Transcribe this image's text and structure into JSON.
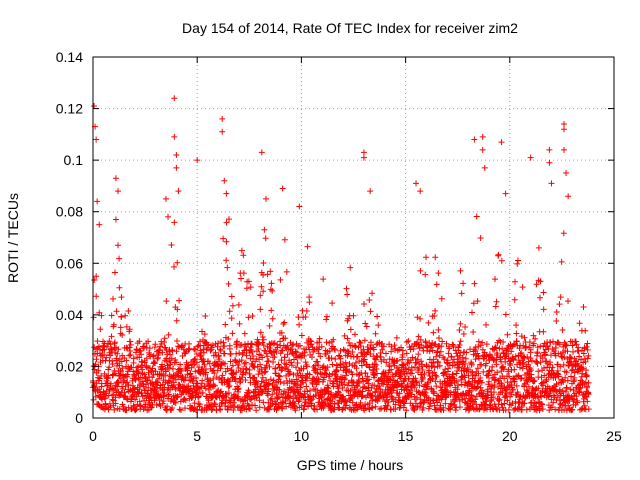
{
  "chart_data": {
    "type": "scatter",
    "title": "Day 154 of 2014, Rate Of TEC Index for receiver zim2",
    "xlabel": "GPS time / hours",
    "ylabel": "ROTI / TECUs",
    "xlim": [
      0,
      25
    ],
    "ylim": [
      0,
      0.14
    ],
    "xticks": [
      0,
      5,
      10,
      15,
      20,
      25
    ],
    "xtick_labels": [
      "0",
      "5",
      "10",
      "15",
      "20",
      "25"
    ],
    "yticks": [
      0,
      0.02,
      0.04,
      0.06,
      0.08,
      0.1,
      0.12,
      0.14
    ],
    "ytick_labels": [
      "0",
      "0.02",
      "0.04",
      "0.06",
      "0.08",
      "0.1",
      "0.12",
      "0.14"
    ],
    "grid": true,
    "marker": "plus",
    "color": "#ff0000",
    "series": [
      {
        "name": "ROTI",
        "x_range": [
          0,
          23.8
        ],
        "background_band": [
          0.003,
          0.03
        ],
        "notable_points": [
          {
            "x": 0.05,
            "y": 0.121
          },
          {
            "x": 0.1,
            "y": 0.113
          },
          {
            "x": 0.15,
            "y": 0.108
          },
          {
            "x": 0.2,
            "y": 0.084
          },
          {
            "x": 0.3,
            "y": 0.075
          },
          {
            "x": 1.1,
            "y": 0.093
          },
          {
            "x": 1.2,
            "y": 0.088
          },
          {
            "x": 1.1,
            "y": 0.077
          },
          {
            "x": 1.2,
            "y": 0.067
          },
          {
            "x": 3.5,
            "y": 0.085
          },
          {
            "x": 3.6,
            "y": 0.078
          },
          {
            "x": 3.9,
            "y": 0.124
          },
          {
            "x": 3.9,
            "y": 0.109
          },
          {
            "x": 4.0,
            "y": 0.102
          },
          {
            "x": 4.0,
            "y": 0.097
          },
          {
            "x": 4.1,
            "y": 0.088
          },
          {
            "x": 5.0,
            "y": 0.1
          },
          {
            "x": 6.2,
            "y": 0.116
          },
          {
            "x": 6.2,
            "y": 0.111
          },
          {
            "x": 6.3,
            "y": 0.092
          },
          {
            "x": 6.4,
            "y": 0.087
          },
          {
            "x": 8.1,
            "y": 0.103
          },
          {
            "x": 8.3,
            "y": 0.085
          },
          {
            "x": 9.1,
            "y": 0.089
          },
          {
            "x": 9.9,
            "y": 0.082
          },
          {
            "x": 13.0,
            "y": 0.103
          },
          {
            "x": 13.0,
            "y": 0.101
          },
          {
            "x": 13.3,
            "y": 0.088
          },
          {
            "x": 15.5,
            "y": 0.091
          },
          {
            "x": 15.7,
            "y": 0.088
          },
          {
            "x": 18.3,
            "y": 0.108
          },
          {
            "x": 18.7,
            "y": 0.109
          },
          {
            "x": 18.7,
            "y": 0.104
          },
          {
            "x": 18.8,
            "y": 0.097
          },
          {
            "x": 19.6,
            "y": 0.107
          },
          {
            "x": 19.8,
            "y": 0.087
          },
          {
            "x": 21.0,
            "y": 0.101
          },
          {
            "x": 21.9,
            "y": 0.104
          },
          {
            "x": 21.9,
            "y": 0.099
          },
          {
            "x": 22.0,
            "y": 0.091
          },
          {
            "x": 22.6,
            "y": 0.114
          },
          {
            "x": 22.6,
            "y": 0.112
          },
          {
            "x": 22.6,
            "y": 0.104
          },
          {
            "x": 22.7,
            "y": 0.095
          },
          {
            "x": 22.8,
            "y": 0.086
          }
        ],
        "activity_peaks": [
          {
            "x": 0.2,
            "y": 0.06
          },
          {
            "x": 1.1,
            "y": 0.07
          },
          {
            "x": 1.6,
            "y": 0.045
          },
          {
            "x": 3.8,
            "y": 0.085
          },
          {
            "x": 5.4,
            "y": 0.045
          },
          {
            "x": 6.4,
            "y": 0.085
          },
          {
            "x": 7.3,
            "y": 0.075
          },
          {
            "x": 8.3,
            "y": 0.08
          },
          {
            "x": 9.2,
            "y": 0.075
          },
          {
            "x": 10.2,
            "y": 0.07
          },
          {
            "x": 11.2,
            "y": 0.065
          },
          {
            "x": 12.3,
            "y": 0.06
          },
          {
            "x": 13.3,
            "y": 0.08
          },
          {
            "x": 14.5,
            "y": 0.035
          },
          {
            "x": 15.8,
            "y": 0.08
          },
          {
            "x": 16.5,
            "y": 0.065
          },
          {
            "x": 17.6,
            "y": 0.06
          },
          {
            "x": 18.5,
            "y": 0.085
          },
          {
            "x": 19.5,
            "y": 0.07
          },
          {
            "x": 20.4,
            "y": 0.065
          },
          {
            "x": 21.5,
            "y": 0.07
          },
          {
            "x": 22.6,
            "y": 0.075
          },
          {
            "x": 23.5,
            "y": 0.05
          }
        ]
      }
    ]
  }
}
